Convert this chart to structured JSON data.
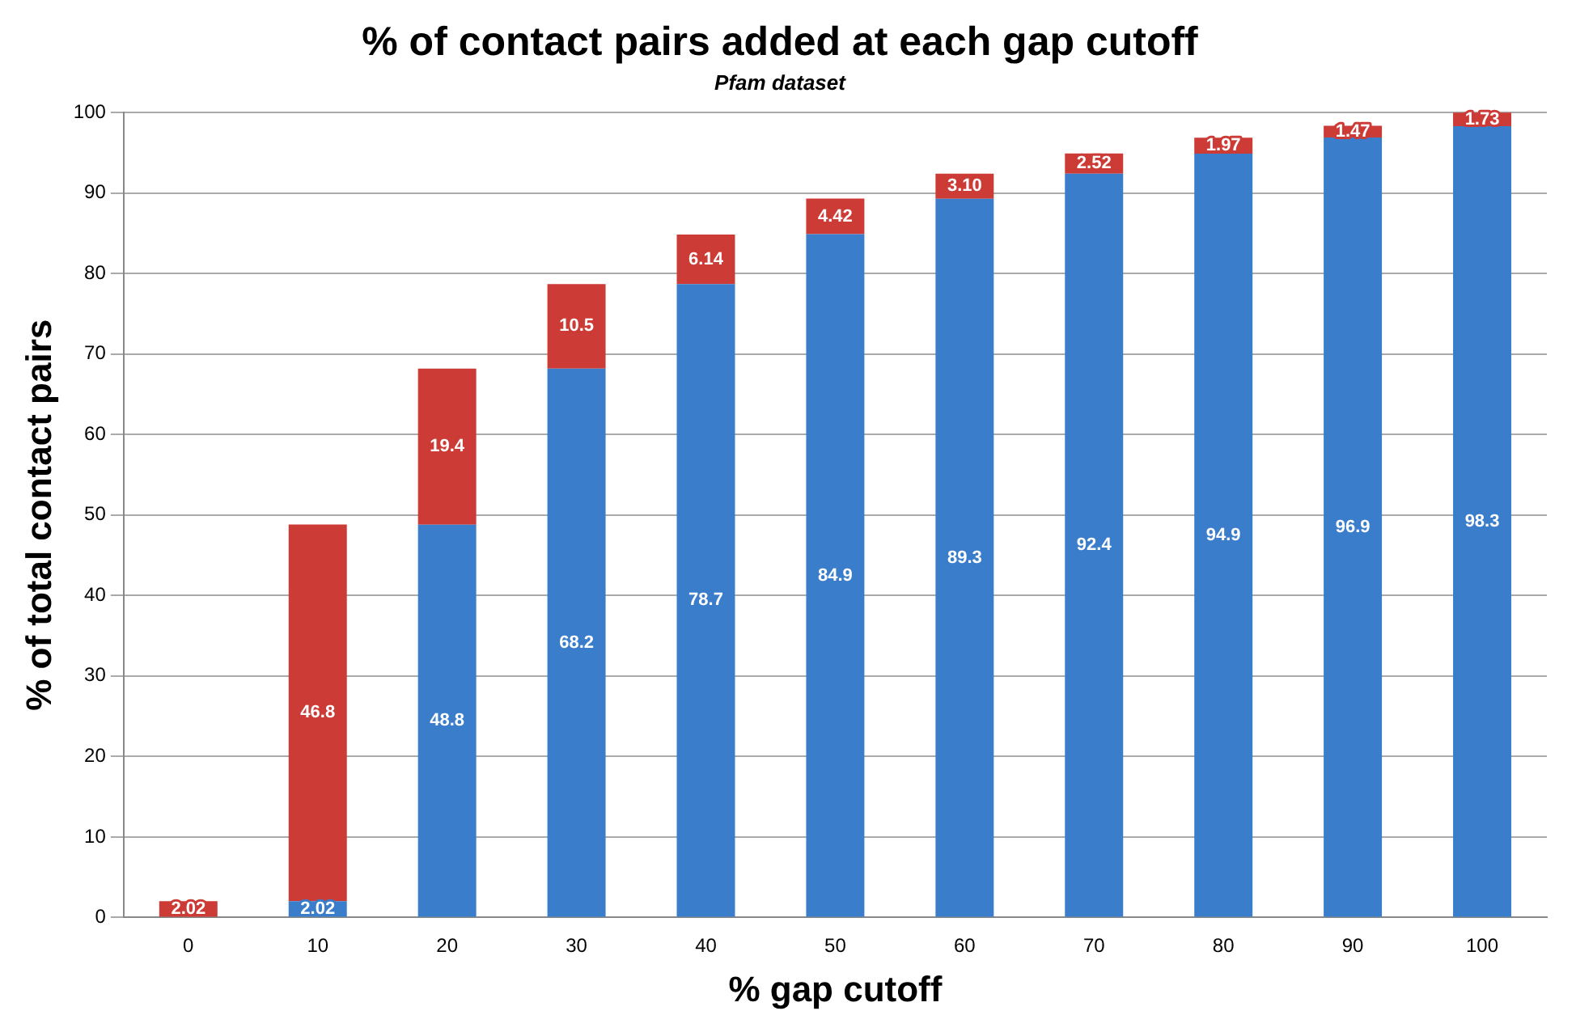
{
  "chart_data": {
    "type": "bar",
    "title": "% of contact pairs added at each gap cutoff",
    "subtitle": "Pfam dataset",
    "xlabel": "% gap cutoff",
    "ylabel": "% of total contact pairs",
    "categories": [
      "0",
      "10",
      "20",
      "30",
      "40",
      "50",
      "60",
      "70",
      "80",
      "90",
      "100"
    ],
    "stacked": true,
    "series": [
      {
        "color": "#3a7dcb",
        "values": [
          0,
          2.02,
          48.8,
          68.2,
          78.7,
          84.9,
          89.3,
          92.4,
          94.9,
          96.9,
          98.3
        ],
        "value_labels": [
          null,
          "2.02",
          "48.8",
          "68.2",
          "78.7",
          "84.9",
          "89.3",
          "92.4",
          "94.9",
          "96.9",
          "98.3"
        ]
      },
      {
        "color": "#cc3b36",
        "values": [
          2.02,
          46.8,
          19.4,
          10.5,
          6.14,
          4.42,
          3.1,
          2.52,
          1.97,
          1.47,
          1.73
        ],
        "value_labels": [
          "2.02",
          "46.8",
          "19.4",
          "10.5",
          "6.14",
          "4.42",
          "3.10",
          "2.52",
          "1.97",
          "1.47",
          "1.73"
        ]
      }
    ],
    "ylim": [
      0,
      100
    ],
    "yticks": [
      0,
      10,
      20,
      30,
      40,
      50,
      60,
      70,
      80,
      90,
      100
    ],
    "grid": "y",
    "legend": false
  }
}
